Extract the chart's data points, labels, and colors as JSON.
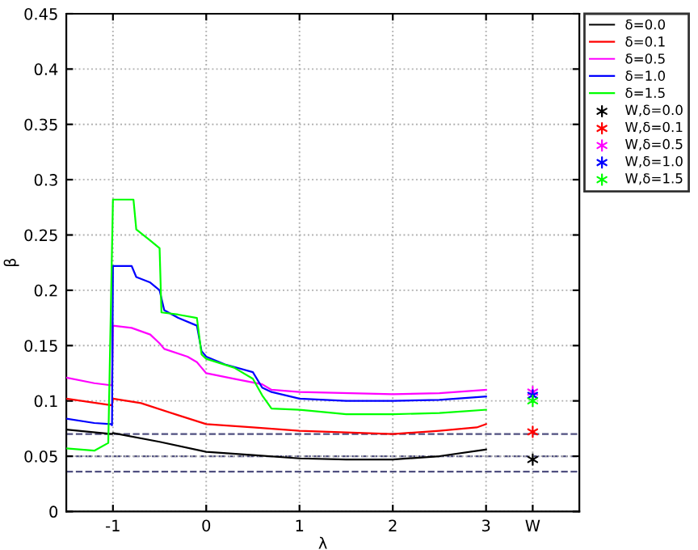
{
  "chart_data": {
    "type": "line",
    "xlabel": "λ",
    "ylabel": "β",
    "xlim": [
      -1.5,
      4
    ],
    "ylim": [
      0,
      0.45
    ],
    "xticks": [
      -1,
      0,
      1,
      2,
      3,
      {
        "value": 3.5,
        "label": "W"
      }
    ],
    "yticks": [
      0,
      0.05,
      0.1,
      0.15,
      0.2,
      0.25,
      0.3,
      0.35,
      0.4,
      0.45
    ],
    "grid": true,
    "legend": "right",
    "series": [
      {
        "name": "δ=0.0",
        "color": "#000000",
        "x": [
          -1.5,
          -1.01,
          -1,
          -0.5,
          0,
          0.5,
          1,
          1.5,
          2,
          2.5,
          3
        ],
        "values": [
          0.074,
          0.07,
          0.071,
          0.063,
          0.054,
          0.051,
          0.048,
          0.047,
          0.047,
          0.05,
          0.056
        ]
      },
      {
        "name": "δ=0.1",
        "color": "#ff0000",
        "x": [
          -1.5,
          -1.01,
          -1,
          -0.7,
          -0.3,
          0,
          0.5,
          1,
          2,
          2.5,
          2.9,
          3
        ],
        "values": [
          0.102,
          0.096,
          0.102,
          0.098,
          0.087,
          0.079,
          0.076,
          0.073,
          0.07,
          0.073,
          0.076,
          0.079
        ]
      },
      {
        "name": "δ=0.5",
        "color": "#ff00ff",
        "x": [
          -1.5,
          -1.2,
          -1.01,
          -1,
          -0.8,
          -0.6,
          -0.5,
          -0.45,
          -0.2,
          -0.1,
          -0.05,
          0,
          0.3,
          0.6,
          0.7,
          1,
          2,
          2.5,
          3
        ],
        "values": [
          0.121,
          0.116,
          0.114,
          0.168,
          0.166,
          0.16,
          0.152,
          0.147,
          0.14,
          0.135,
          0.13,
          0.125,
          0.12,
          0.115,
          0.11,
          0.108,
          0.106,
          0.107,
          0.11
        ]
      },
      {
        "name": "δ=1.0",
        "color": "#0000ff",
        "x": [
          -1.5,
          -1.2,
          -1.02,
          -1.01,
          -1,
          -0.8,
          -0.75,
          -0.6,
          -0.5,
          -0.45,
          -0.3,
          -0.1,
          -0.05,
          0,
          0.2,
          0.5,
          0.6,
          0.7,
          1,
          1.5,
          2,
          2.5,
          3
        ],
        "values": [
          0.084,
          0.08,
          0.079,
          0.078,
          0.222,
          0.222,
          0.212,
          0.207,
          0.2,
          0.182,
          0.175,
          0.168,
          0.145,
          0.14,
          0.133,
          0.126,
          0.112,
          0.108,
          0.102,
          0.1,
          0.1,
          0.101,
          0.104
        ]
      },
      {
        "name": "δ=1.5",
        "color": "#00ff00",
        "x": [
          -1.5,
          -1.2,
          -1.05,
          -1,
          -0.78,
          -0.75,
          -0.6,
          -0.5,
          -0.48,
          -0.3,
          -0.1,
          -0.05,
          0,
          0.3,
          0.5,
          0.6,
          0.7,
          1,
          1.5,
          2,
          2.5,
          3
        ],
        "values": [
          0.057,
          0.055,
          0.062,
          0.282,
          0.282,
          0.255,
          0.245,
          0.238,
          0.18,
          0.178,
          0.175,
          0.142,
          0.138,
          0.13,
          0.12,
          0.105,
          0.093,
          0.092,
          0.088,
          0.088,
          0.089,
          0.092
        ]
      },
      {
        "name": "W,δ=0.0",
        "type": "scatter",
        "marker": "cross",
        "color": "#000000",
        "x": [
          3.5
        ],
        "values": [
          0.047
        ]
      },
      {
        "name": "W,δ=0.1",
        "type": "scatter",
        "marker": "cross",
        "color": "#ff0000",
        "x": [
          3.5
        ],
        "values": [
          0.072
        ]
      },
      {
        "name": "W,δ=0.5",
        "type": "scatter",
        "marker": "cross",
        "color": "#ff00ff",
        "x": [
          3.5
        ],
        "values": [
          0.108
        ]
      },
      {
        "name": "W,δ=1.0",
        "type": "scatter",
        "marker": "cross",
        "color": "#0000ff",
        "x": [
          3.5
        ],
        "values": [
          0.105
        ]
      },
      {
        "name": "W,δ=1.5",
        "type": "scatter",
        "marker": "cross",
        "color": "#00ff00",
        "x": [
          3.5
        ],
        "values": [
          0.1
        ]
      }
    ],
    "ref_lines": [
      {
        "axis": "y",
        "value": 0.07,
        "color": "#505080",
        "line_style": "dashed"
      },
      {
        "axis": "y",
        "value": 0.05,
        "color": "#505080",
        "line_style": "dashed"
      },
      {
        "axis": "y",
        "value": 0.036,
        "color": "#505080",
        "line_style": "dashed"
      }
    ]
  }
}
